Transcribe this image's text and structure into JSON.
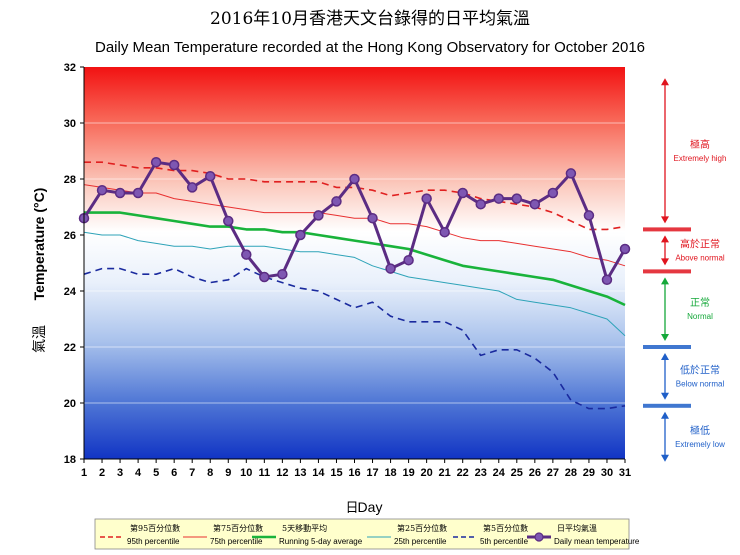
{
  "title_zh": "2016年10月香港天文台錄得的日平均氣溫",
  "title_en": "Daily Mean Temperature recorded at the Hong Kong Observatory for October 2016",
  "colors": {
    "daily": "#5b2c83",
    "daily_marker": "#7e57b2",
    "p95": "#e02020",
    "p75": "#e83030",
    "running": "#19b33b",
    "p25": "#2ea3b8",
    "p5": "#1a2a9e",
    "extreme_high": "#e0141e",
    "above_normal": "#e0141e",
    "normal": "#15a83a",
    "below_normal": "#1f5fc8",
    "extreme_low": "#1f5fc8"
  },
  "chart_data": {
    "type": "line",
    "title": "Daily Mean Temperature recorded at the Hong Kong Observatory for October 2016",
    "xlabel_zh": "日",
    "xlabel": "Day",
    "ylabel_zh": "氣溫",
    "ylabel": "Temperature (°C)",
    "xlim": [
      1,
      31
    ],
    "ylim": [
      18,
      32
    ],
    "yticks": [
      18,
      20,
      22,
      24,
      26,
      28,
      30,
      32
    ],
    "x": [
      1,
      2,
      3,
      4,
      5,
      6,
      7,
      8,
      9,
      10,
      11,
      12,
      13,
      14,
      15,
      16,
      17,
      18,
      19,
      20,
      21,
      22,
      23,
      24,
      25,
      26,
      27,
      28,
      29,
      30,
      31
    ],
    "series": [
      {
        "key": "p95",
        "name_zh": "第95百分位數",
        "name": "95th percentile",
        "style": "dashed",
        "values": [
          28.6,
          28.6,
          28.5,
          28.4,
          28.4,
          28.3,
          28.3,
          28.2,
          28.0,
          28.0,
          27.9,
          27.9,
          27.9,
          27.9,
          27.7,
          27.7,
          27.6,
          27.4,
          27.5,
          27.6,
          27.6,
          27.5,
          27.3,
          27.2,
          27.1,
          27.0,
          26.8,
          26.5,
          26.2,
          26.2,
          26.3
        ]
      },
      {
        "key": "p75",
        "name_zh": "第75百分位數",
        "name": "75th percentile",
        "style": "solid-thin",
        "values": [
          27.8,
          27.7,
          27.6,
          27.5,
          27.5,
          27.3,
          27.2,
          27.1,
          27.0,
          26.9,
          26.8,
          26.8,
          26.8,
          26.8,
          26.7,
          26.6,
          26.6,
          26.4,
          26.4,
          26.3,
          26.1,
          25.9,
          25.8,
          25.8,
          25.7,
          25.6,
          25.5,
          25.4,
          25.2,
          25.1,
          24.9
        ]
      },
      {
        "key": "running",
        "name_zh": "5天移動平均",
        "name": "Running 5-day average",
        "style": "solid-thick",
        "values": [
          26.8,
          26.8,
          26.8,
          26.7,
          26.6,
          26.5,
          26.4,
          26.3,
          26.3,
          26.2,
          26.2,
          26.1,
          26.1,
          26.0,
          25.9,
          25.8,
          25.7,
          25.6,
          25.5,
          25.3,
          25.1,
          24.9,
          24.8,
          24.7,
          24.6,
          24.5,
          24.4,
          24.2,
          24.0,
          23.8,
          23.5
        ]
      },
      {
        "key": "p25",
        "name_zh": "第25百分位數",
        "name": "25th percentile",
        "style": "solid-thin",
        "values": [
          26.1,
          26.0,
          26.0,
          25.8,
          25.7,
          25.6,
          25.6,
          25.5,
          25.6,
          25.6,
          25.6,
          25.5,
          25.4,
          25.4,
          25.3,
          25.2,
          24.9,
          24.7,
          24.5,
          24.4,
          24.3,
          24.2,
          24.1,
          24.0,
          23.7,
          23.6,
          23.5,
          23.4,
          23.2,
          23.0,
          22.4
        ]
      },
      {
        "key": "p5",
        "name_zh": "第5百分位數",
        "name": "5th percentile",
        "style": "dashed",
        "values": [
          24.6,
          24.8,
          24.8,
          24.6,
          24.6,
          24.8,
          24.5,
          24.3,
          24.4,
          24.8,
          24.5,
          24.3,
          24.1,
          24.0,
          23.7,
          23.4,
          23.6,
          23.1,
          22.9,
          22.9,
          22.9,
          22.6,
          21.7,
          21.9,
          21.9,
          21.6,
          21.1,
          20.1,
          19.8,
          19.8,
          19.9
        ]
      },
      {
        "key": "daily",
        "name_zh": "日平均氣溫",
        "name": "Daily mean temperature",
        "style": "marker-line",
        "values": [
          26.6,
          27.6,
          27.5,
          27.5,
          28.6,
          28.5,
          27.7,
          28.1,
          26.5,
          25.3,
          24.5,
          24.6,
          26.0,
          26.7,
          27.2,
          28.0,
          26.6,
          24.8,
          25.1,
          27.3,
          26.1,
          27.5,
          27.1,
          27.3,
          27.3,
          27.1,
          27.5,
          28.2,
          26.7,
          24.4,
          25.5
        ]
      }
    ],
    "bands": [
      {
        "key": "extreme_high",
        "label_zh": "極高",
        "label": "Extremely high"
      },
      {
        "key": "above_normal",
        "label_zh": "高於正常",
        "label": "Above normal"
      },
      {
        "key": "normal",
        "label_zh": "正常",
        "label": "Normal"
      },
      {
        "key": "below_normal",
        "label_zh": "低於正常",
        "label": "Below normal"
      },
      {
        "key": "extreme_low",
        "label_zh": "極低",
        "label": "Extremely low"
      }
    ]
  }
}
